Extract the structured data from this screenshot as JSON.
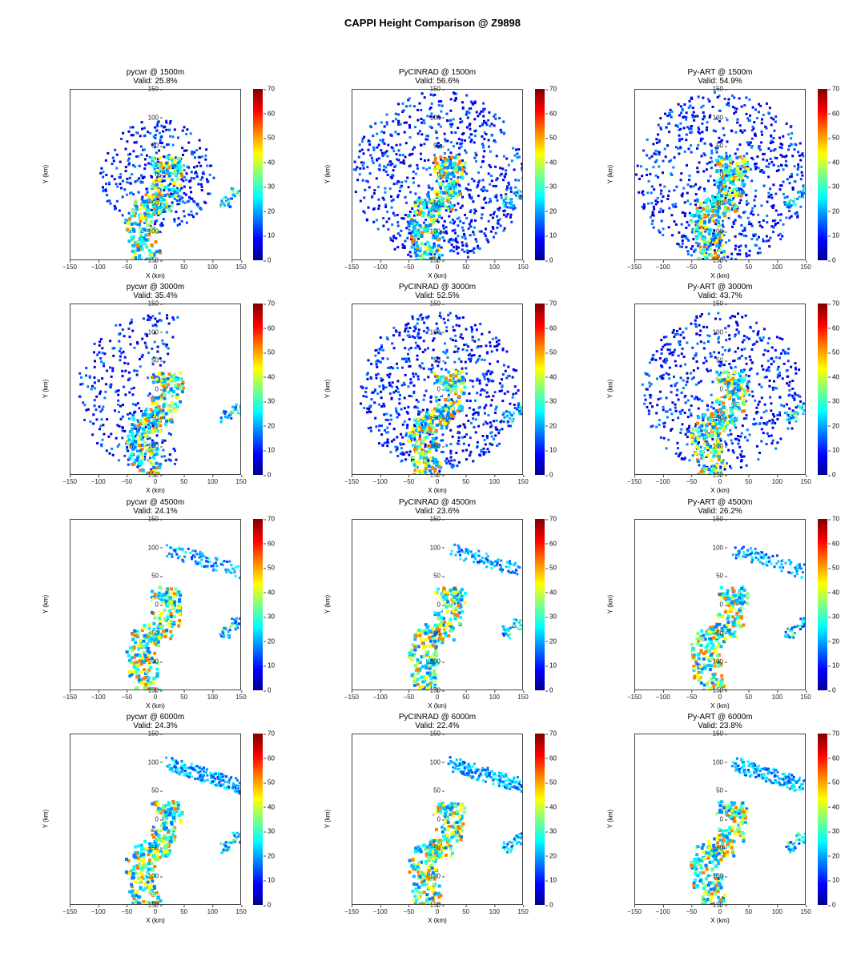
{
  "figure": {
    "suptitle": "CAPPI Height Comparison @ Z9898"
  },
  "chart_data": {
    "type": "heatmap",
    "title": "CAPPI Height Comparison @ Z9898",
    "layout": {
      "rows": 4,
      "cols": 3
    },
    "xlabel": "X (km)",
    "ylabel": "Y (km)",
    "xlim": [
      -150,
      150
    ],
    "ylim": [
      -150,
      150
    ],
    "xticks": [
      -150,
      -100,
      -50,
      0,
      50,
      100,
      150
    ],
    "yticks": [
      -150,
      -100,
      -50,
      0,
      50,
      100,
      150
    ],
    "colorbar": {
      "min": 0,
      "max": 70,
      "ticks": [
        0,
        10,
        20,
        30,
        40,
        50,
        60,
        70
      ],
      "colormap": "jet"
    },
    "panels": [
      {
        "source": "pycwr",
        "height_m": 1500,
        "title": "pycwr @ 1500m",
        "valid": "Valid: 25.8%",
        "valid_pct": 25.8
      },
      {
        "source": "PyCINRAD",
        "height_m": 1500,
        "title": "PyCINRAD @ 1500m",
        "valid": "Valid: 56.6%",
        "valid_pct": 56.6
      },
      {
        "source": "Py-ART",
        "height_m": 1500,
        "title": "Py-ART @ 1500m",
        "valid": "Valid: 54.9%",
        "valid_pct": 54.9
      },
      {
        "source": "pycwr",
        "height_m": 3000,
        "title": "pycwr @ 3000m",
        "valid": "Valid: 35.4%",
        "valid_pct": 35.4
      },
      {
        "source": "PyCINRAD",
        "height_m": 3000,
        "title": "PyCINRAD @ 3000m",
        "valid": "Valid: 52.5%",
        "valid_pct": 52.5
      },
      {
        "source": "Py-ART",
        "height_m": 3000,
        "title": "Py-ART @ 3000m",
        "valid": "Valid: 43.7%",
        "valid_pct": 43.7
      },
      {
        "source": "pycwr",
        "height_m": 4500,
        "title": "pycwr @ 4500m",
        "valid": "Valid: 24.1%",
        "valid_pct": 24.1
      },
      {
        "source": "PyCINRAD",
        "height_m": 4500,
        "title": "PyCINRAD @ 4500m",
        "valid": "Valid: 23.6%",
        "valid_pct": 23.6
      },
      {
        "source": "Py-ART",
        "height_m": 4500,
        "title": "Py-ART @ 4500m",
        "valid": "Valid: 26.2%",
        "valid_pct": 26.2
      },
      {
        "source": "pycwr",
        "height_m": 6000,
        "title": "pycwr @ 6000m",
        "valid": "Valid: 24.3%",
        "valid_pct": 24.3
      },
      {
        "source": "PyCINRAD",
        "height_m": 6000,
        "title": "PyCINRAD @ 6000m",
        "valid": "Valid: 22.4%",
        "valid_pct": 22.4
      },
      {
        "source": "Py-ART",
        "height_m": 6000,
        "title": "Py-ART @ 6000m",
        "valid": "Valid: 23.8%",
        "valid_pct": 23.8
      }
    ]
  }
}
